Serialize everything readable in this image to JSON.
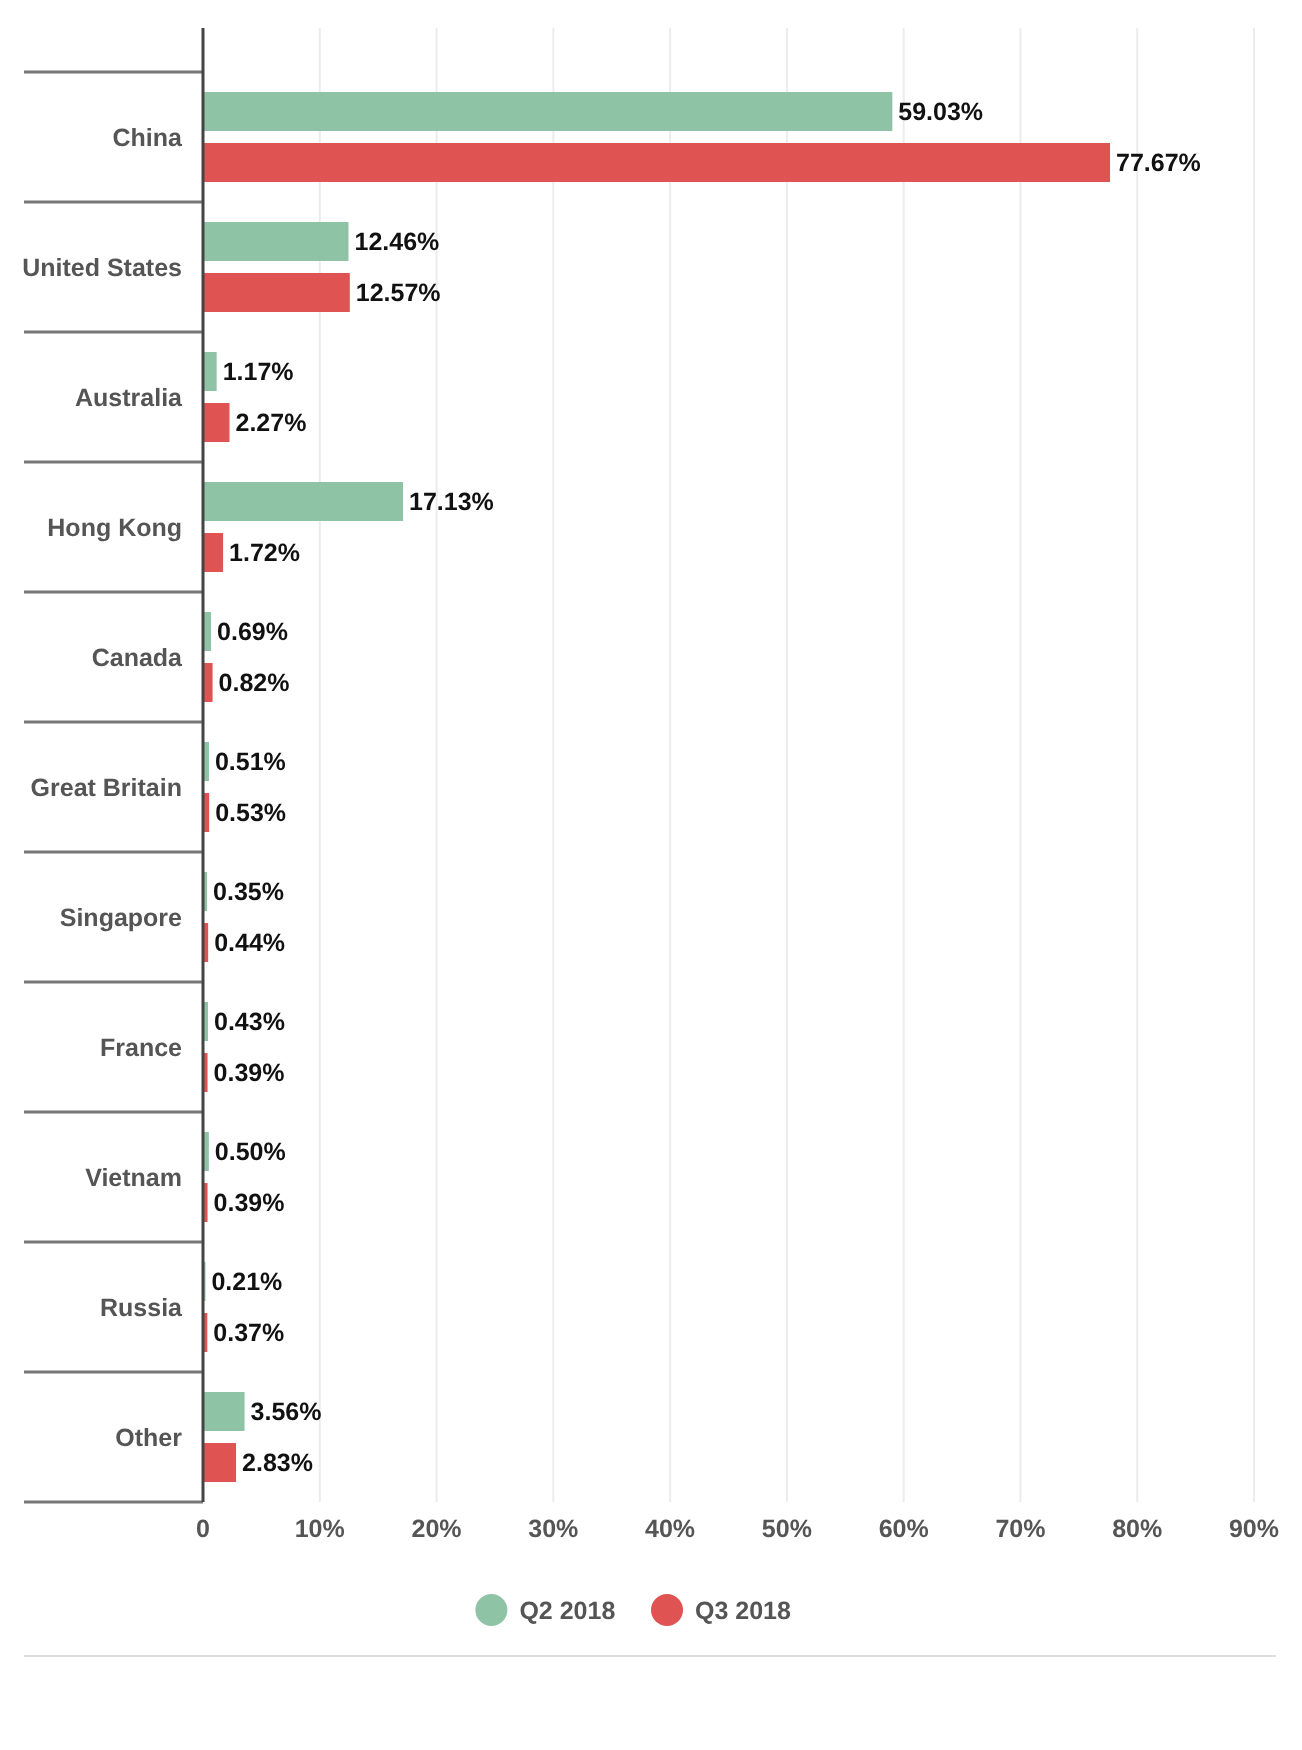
{
  "chart_data": {
    "type": "bar",
    "orientation": "horizontal",
    "categories": [
      "China",
      "United States",
      "Australia",
      "Hong Kong",
      "Canada",
      "Great Britain",
      "Singapore",
      "France",
      "Vietnam",
      "Russia",
      "Other"
    ],
    "series": [
      {
        "name": "Q2 2018",
        "color": "#8ec3a5",
        "values": [
          59.03,
          12.46,
          1.17,
          17.13,
          0.69,
          0.51,
          0.35,
          0.43,
          0.5,
          0.21,
          3.56
        ],
        "value_labels": [
          "59.03%",
          "12.46%",
          "1.17%",
          "17.13%",
          "0.69%",
          "0.51%",
          "0.35%",
          "0.43%",
          "0.50%",
          "0.21%",
          "3.56%"
        ]
      },
      {
        "name": "Q3 2018",
        "color": "#df5353",
        "values": [
          77.67,
          12.57,
          2.27,
          1.72,
          0.82,
          0.53,
          0.44,
          0.39,
          0.39,
          0.37,
          2.83
        ],
        "value_labels": [
          "77.67%",
          "12.57%",
          "2.27%",
          "1.72%",
          "0.82%",
          "0.53%",
          "0.44%",
          "0.39%",
          "0.39%",
          "0.37%",
          "2.83%"
        ]
      }
    ],
    "xlim": [
      0,
      90
    ],
    "xticks": [
      0,
      {
        "value": 10,
        "label": "10%"
      },
      {
        "value": 20,
        "label": "20%"
      },
      {
        "value": 30,
        "label": "30%"
      },
      {
        "value": 40,
        "label": "40%"
      },
      {
        "value": 50,
        "label": "50%"
      },
      {
        "value": 60,
        "label": "60%"
      },
      {
        "value": 70,
        "label": "70%"
      },
      {
        "value": 80,
        "label": "80%"
      },
      {
        "value": 90,
        "label": "90%"
      }
    ],
    "grid": "x",
    "legend": "bottom"
  }
}
